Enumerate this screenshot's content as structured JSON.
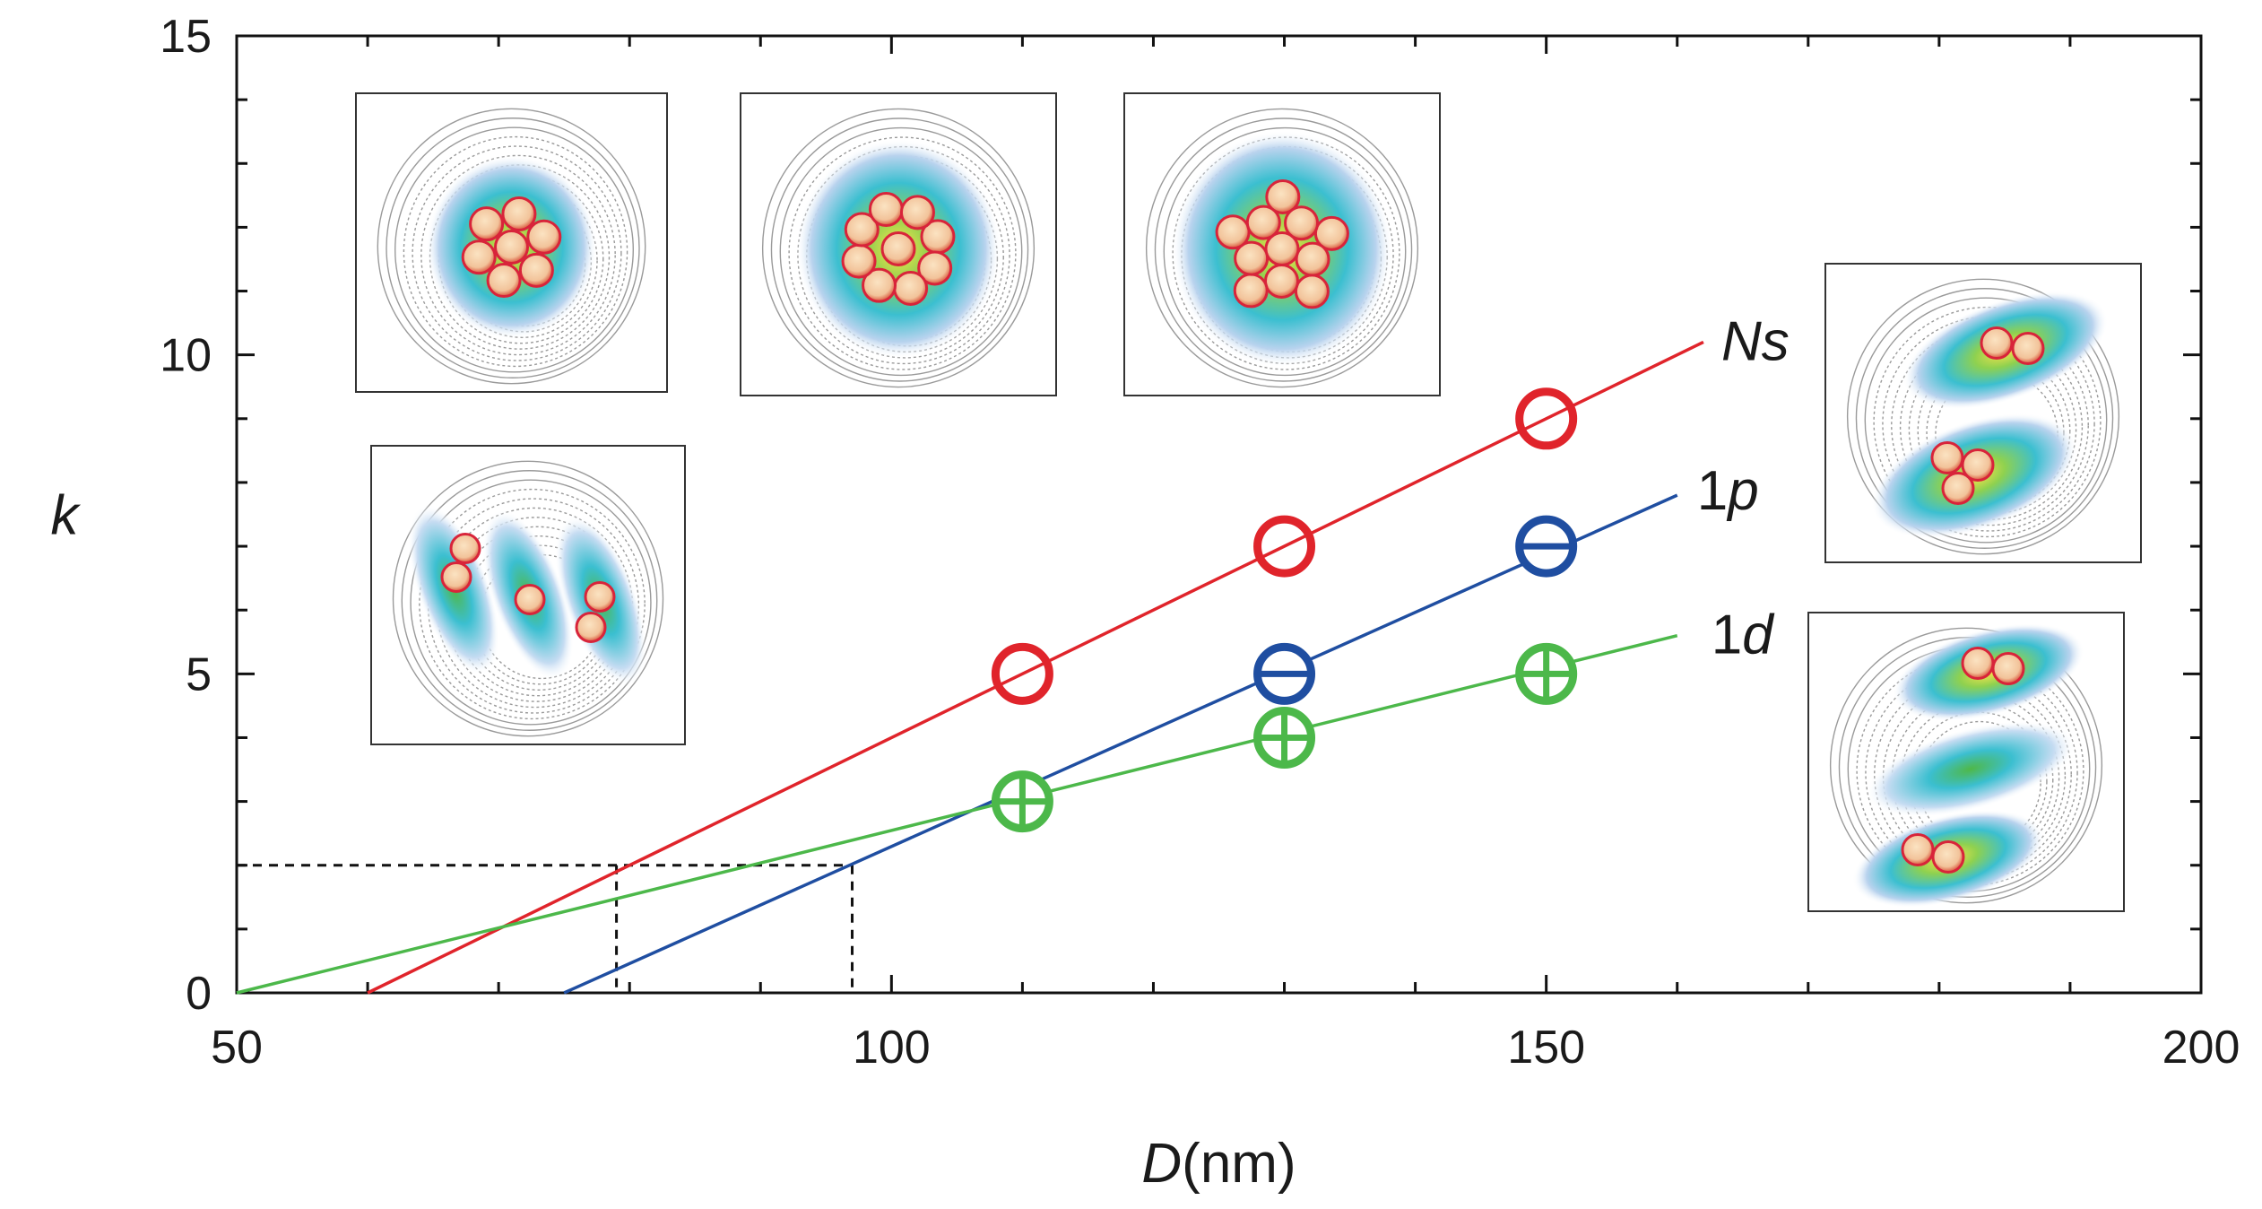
{
  "chart_data": {
    "type": "line",
    "title": "",
    "xlabel": "D(nm)",
    "xlabel_italic_part": "D",
    "xlabel_unit_part": "(nm)",
    "ylabel": "k",
    "xlim": [
      50,
      200
    ],
    "ylim": [
      0,
      15
    ],
    "xticks": [
      50,
      100,
      150,
      200
    ],
    "yticks": [
      0,
      5,
      10,
      15
    ],
    "x_minor_step": 10,
    "y_minor_step": 1,
    "grid": false,
    "series": [
      {
        "name": "Ns",
        "label_italic": "Ns",
        "label_plain": "",
        "color": "#e0242b",
        "marker": "circle",
        "fit_line": [
          [
            60,
            0
          ],
          [
            162,
            10.2
          ]
        ],
        "points": [
          [
            110,
            5
          ],
          [
            130,
            7
          ],
          [
            150,
            9
          ]
        ]
      },
      {
        "name": "1p",
        "label_plain": "1",
        "label_italic": "p",
        "color": "#1f4ea1",
        "marker": "circle-minus",
        "fit_line": [
          [
            75,
            0
          ],
          [
            160,
            7.8
          ]
        ],
        "points": [
          [
            130,
            5
          ],
          [
            150,
            7
          ]
        ]
      },
      {
        "name": "1d",
        "label_plain": "1",
        "label_italic": "d",
        "color": "#4cb84a",
        "marker": "circle-plus",
        "fit_line": [
          [
            50,
            0
          ],
          [
            160,
            5.6
          ]
        ],
        "points": [
          [
            110,
            3
          ],
          [
            130,
            4
          ],
          [
            150,
            5
          ]
        ]
      }
    ],
    "reference_lines": {
      "color": "#111111",
      "style": "dashed",
      "k": 2,
      "x_values": [
        79,
        97
      ]
    },
    "insets": [
      {
        "name": "inset-7-nodes-round",
        "pattern": "cluster",
        "nodes": 7
      },
      {
        "name": "inset-9-nodes",
        "pattern": "cluster",
        "nodes": 9
      },
      {
        "name": "inset-11-nodes",
        "pattern": "cluster",
        "nodes": 11
      },
      {
        "name": "inset-three-lobes",
        "pattern": "three-lobes"
      },
      {
        "name": "inset-two-lobes",
        "pattern": "two-lobes"
      },
      {
        "name": "inset-three-bands",
        "pattern": "three-bands"
      }
    ]
  }
}
